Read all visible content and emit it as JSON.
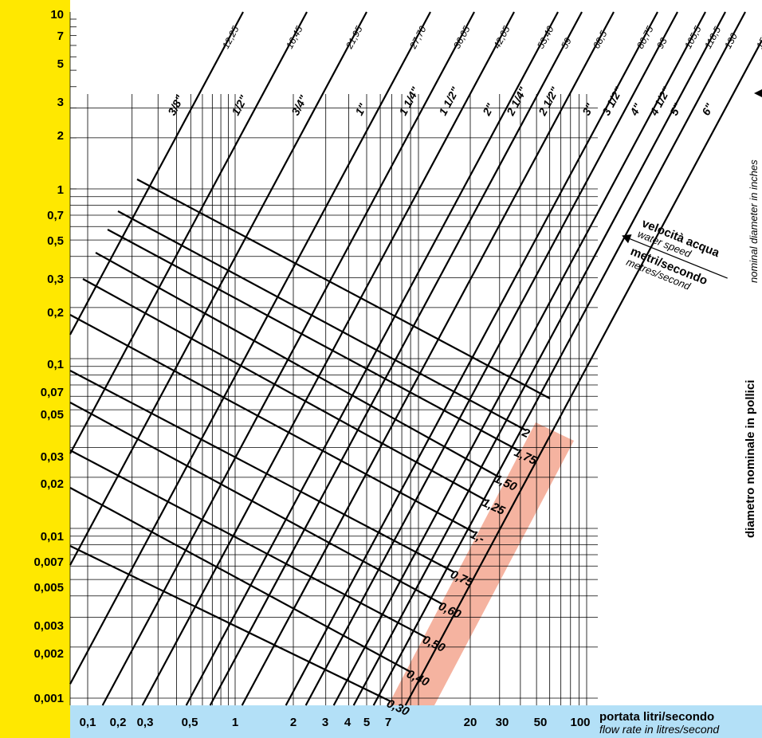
{
  "y_axis_labels": [
    "10",
    "7",
    "5",
    "3",
    "2",
    "1",
    "0,7",
    "0,5",
    "0,3",
    "0,2",
    "0,1",
    "0,07",
    "0,05",
    "0,03",
    "0,02",
    "0,01",
    "0,007",
    "0,005",
    "0,003",
    "0,002",
    "0,001"
  ],
  "x_axis_labels": [
    "0,1",
    "0,2",
    "0,3",
    "0,5",
    "1",
    "2",
    "3",
    "4",
    "5",
    "7",
    "20",
    "30",
    "50",
    "100"
  ],
  "x_axis_title": "portata litri/secondo",
  "x_axis_subtitle": "flow rate in litres/second",
  "right_title": "diametro nominale in pollici",
  "right_subtitle": "nominal diameter in inches",
  "velocity_title": "velocità acqua",
  "velocity_subtitle": "water speed",
  "velocity_unit": "metri/secondo",
  "velocity_unit_sub": "metres/second",
  "pipes": [
    {
      "inches": "3/8\"",
      "mm": "12,25"
    },
    {
      "inches": "1/2\"",
      "mm": "16,45"
    },
    {
      "inches": "3/4\"",
      "mm": "21,95"
    },
    {
      "inches": "1\"",
      "mm": "27,70"
    },
    {
      "inches": "1 1/4\"",
      "mm": "36,05"
    },
    {
      "inches": "1 1/2\"",
      "mm": "42,05"
    },
    {
      "inches": "2\"",
      "mm": "53,40"
    },
    {
      "inches": "2 1/4\"",
      "mm": "59"
    },
    {
      "inches": "2 1/2\"",
      "mm": "68,5"
    },
    {
      "inches": "3\"",
      "mm": "80,75"
    },
    {
      "inches": "3 1/2\"",
      "mm": "93"
    },
    {
      "inches": "4\"",
      "mm": "105,5"
    },
    {
      "inches": "4 1/2\"",
      "mm": "118,5"
    },
    {
      "inches": "5\"",
      "mm": "130"
    },
    {
      "inches": "6\"",
      "mm": "155,5"
    }
  ],
  "velocity_labels": [
    "2",
    "1,75",
    "1,50",
    "1,25",
    "1,-",
    "0,75",
    "0,60",
    "0,50",
    "0,40",
    "0,30"
  ]
}
